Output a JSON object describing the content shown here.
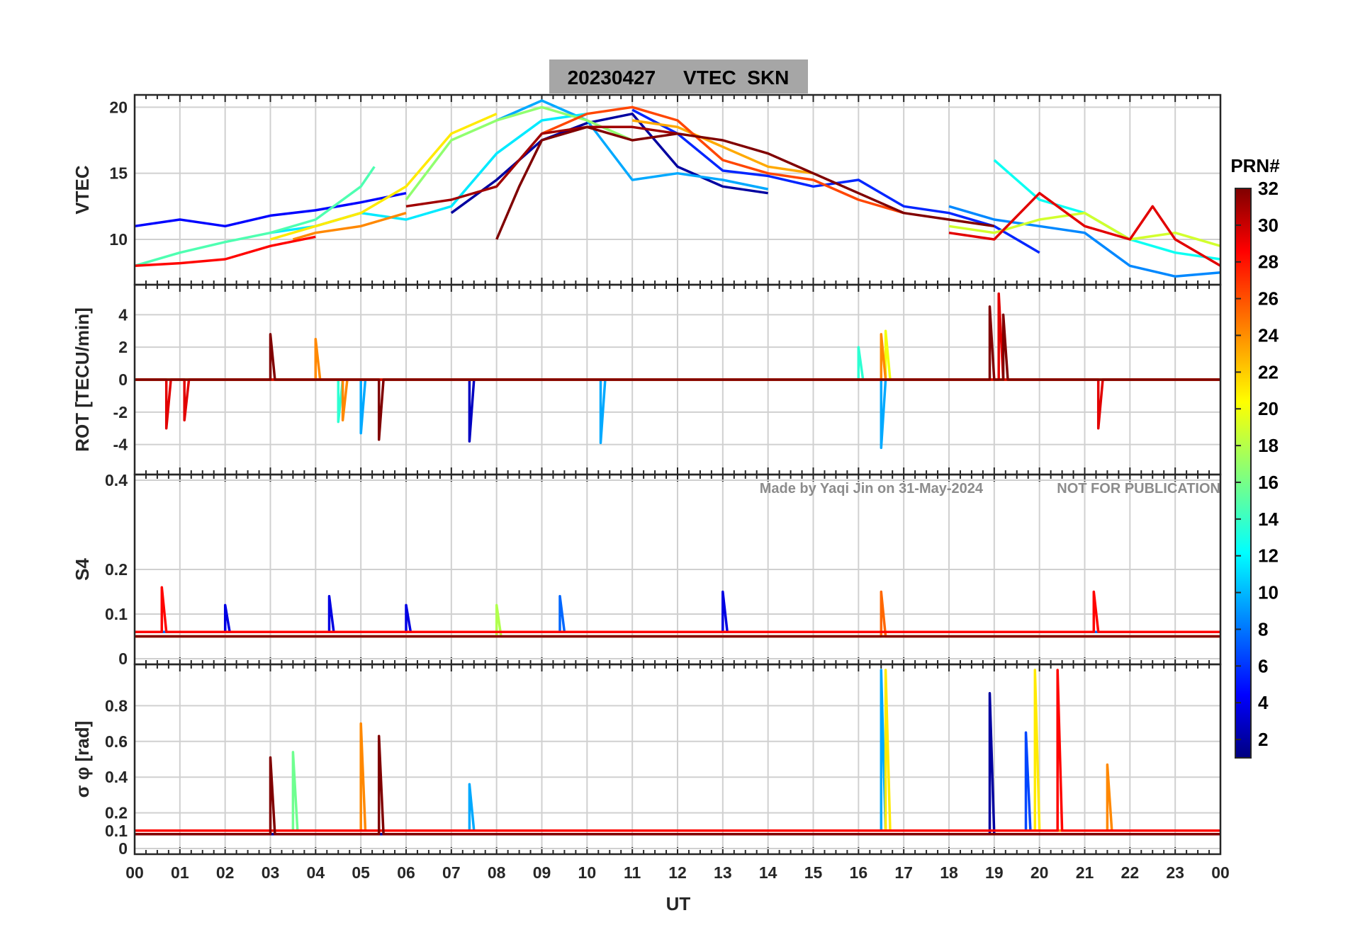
{
  "colors": {
    "title_box": "#a6a6a6",
    "grid": "#d0d0d0",
    "axis": "#262626",
    "watermark": "#8c8c8c"
  },
  "chart_data": {
    "type": "line",
    "title": "20230427     VTEC  SKN",
    "xlabel": "UT",
    "x_range": [
      0,
      24
    ],
    "x_tick_labels": [
      "00",
      "01",
      "02",
      "03",
      "04",
      "05",
      "06",
      "07",
      "08",
      "09",
      "10",
      "11",
      "12",
      "13",
      "14",
      "15",
      "16",
      "17",
      "18",
      "19",
      "20",
      "21",
      "22",
      "23",
      "00"
    ],
    "watermark_left": "Made by Yaqi Jin on 31-May-2024",
    "watermark_right": "NOT FOR PUBLICATION",
    "colorbar": {
      "title": "PRN#",
      "range": [
        1,
        32
      ],
      "tick_labels": [
        "2",
        "4",
        "6",
        "8",
        "10",
        "12",
        "14",
        "16",
        "18",
        "20",
        "22",
        "24",
        "26",
        "28",
        "30",
        "32"
      ],
      "colormap": "jet"
    },
    "panels": [
      {
        "ylabel": "VTEC",
        "ylim": [
          7,
          20.5
        ],
        "yticks": [
          10,
          15,
          20
        ],
        "ytick_labels": [
          "10",
          "15",
          "20"
        ],
        "series": [
          {
            "name": "PRN 2",
            "prn": 2,
            "x": [
              7.0,
              8.0,
              9.0,
              10.0,
              11.0,
              12.0,
              13.0,
              14.0
            ],
            "y": [
              12.0,
              14.5,
              17.5,
              18.8,
              19.5,
              15.5,
              14.0,
              13.5
            ]
          },
          {
            "name": "PRN 5",
            "prn": 5,
            "x": [
              0.0,
              1.0,
              2.0,
              3.0,
              4.0,
              5.0,
              6.0
            ],
            "y": [
              11.0,
              11.5,
              11.0,
              11.8,
              12.2,
              12.8,
              13.5
            ]
          },
          {
            "name": "PRN 6",
            "prn": 6,
            "x": [
              11.0,
              12.0,
              13.0,
              14.0,
              15.0,
              16.0,
              17.0,
              18.0,
              19.0,
              20.0
            ],
            "y": [
              19.8,
              18.0,
              15.2,
              14.8,
              14.0,
              14.5,
              12.5,
              12.0,
              11.0,
              9.0
            ]
          },
          {
            "name": "PRN 9",
            "prn": 9,
            "x": [
              18.0,
              19.0,
              20.0,
              21.0,
              22.0,
              23.0,
              24.0
            ],
            "y": [
              12.5,
              11.5,
              11.0,
              10.5,
              8.0,
              7.2,
              7.5
            ]
          },
          {
            "name": "PRN 10",
            "prn": 10,
            "x": [
              8.0,
              9.0,
              10.0,
              11.0,
              12.0,
              13.0,
              14.0
            ],
            "y": [
              19.0,
              20.5,
              19.0,
              14.5,
              15.0,
              14.5,
              13.8
            ]
          },
          {
            "name": "PRN 12",
            "prn": 12,
            "x": [
              3.0,
              4.0,
              5.0,
              6.0,
              7.0,
              8.0,
              9.0,
              10.0
            ],
            "y": [
              10.5,
              11.0,
              12.0,
              11.5,
              12.5,
              16.5,
              19.0,
              19.5
            ]
          },
          {
            "name": "PRN 13",
            "prn": 13,
            "x": [
              19.0,
              20.0,
              21.0,
              22.0,
              23.0,
              24.0
            ],
            "y": [
              16.0,
              13.0,
              12.0,
              10.0,
              9.0,
              8.5
            ]
          },
          {
            "name": "PRN 15",
            "prn": 15,
            "x": [
              0.0,
              1.0,
              2.0,
              3.0,
              4.0,
              5.0,
              5.3
            ],
            "y": [
              8.0,
              9.0,
              9.8,
              10.5,
              11.5,
              14.0,
              15.5
            ]
          },
          {
            "name": "PRN 17",
            "prn": 17,
            "x": [
              6.0,
              7.0,
              8.0,
              9.0,
              10.0,
              11.0
            ],
            "y": [
              13.0,
              17.5,
              19.0,
              20.0,
              19.0,
              17.5
            ]
          },
          {
            "name": "PRN 19",
            "prn": 19,
            "x": [
              18.0,
              19.0,
              20.0,
              21.0,
              22.0,
              23.0,
              24.0
            ],
            "y": [
              11.0,
              10.5,
              11.5,
              12.0,
              10.0,
              10.5,
              9.5
            ]
          },
          {
            "name": "PRN 21",
            "prn": 21,
            "x": [
              3.0,
              4.0,
              5.0,
              6.0,
              7.0,
              8.0
            ],
            "y": [
              10.0,
              11.0,
              12.0,
              14.0,
              18.0,
              19.5
            ]
          },
          {
            "name": "PRN 23",
            "prn": 23,
            "x": [
              11.0,
              12.0,
              13.0,
              14.0,
              15.0
            ],
            "y": [
              19.0,
              18.5,
              17.0,
              15.5,
              15.0
            ]
          },
          {
            "name": "PRN 24",
            "prn": 24,
            "x": [
              3.5,
              4.0,
              5.0,
              5.5,
              6.0
            ],
            "y": [
              10.0,
              10.5,
              11.0,
              11.5,
              12.0
            ]
          },
          {
            "name": "PRN 26",
            "prn": 26,
            "x": [
              9.0,
              10.0,
              11.0,
              12.0,
              13.0,
              14.0,
              15.0,
              16.0,
              17.0
            ],
            "y": [
              18.0,
              19.5,
              20.0,
              19.0,
              16.0,
              15.0,
              14.5,
              13.0,
              12.0
            ]
          },
          {
            "name": "PRN 28",
            "prn": 28,
            "x": [
              0.0,
              1.0,
              2.0,
              3.0,
              4.0
            ],
            "y": [
              8.0,
              8.2,
              8.5,
              9.5,
              10.2
            ]
          },
          {
            "name": "PRN 29",
            "prn": 29,
            "x": [
              18.0,
              19.0,
              20.0,
              21.0,
              22.0,
              22.5,
              23.0,
              24.0
            ],
            "y": [
              10.5,
              10.0,
              13.5,
              11.0,
              10.0,
              12.5,
              10.0,
              8.0
            ]
          },
          {
            "name": "PRN 31",
            "prn": 31,
            "x": [
              6.0,
              7.0,
              8.0,
              9.0,
              10.0,
              11.0,
              12.0
            ],
            "y": [
              12.5,
              13.0,
              14.0,
              18.0,
              18.5,
              18.5,
              18.0
            ]
          },
          {
            "name": "PRN 32",
            "prn": 32,
            "x": [
              8.0,
              8.5,
              9.0,
              10.0,
              11.0,
              12.0,
              13.0,
              14.0,
              15.0,
              16.0,
              17.0,
              18.0,
              19.0
            ],
            "y": [
              10.0,
              14.0,
              17.5,
              18.5,
              17.5,
              18.0,
              17.5,
              16.5,
              15.0,
              13.5,
              12.0,
              11.5,
              11.0
            ]
          }
        ]
      },
      {
        "ylabel": "ROT [TECU/min]",
        "ylim": [
          -5.5,
          5.5
        ],
        "yticks": [
          -4,
          -2,
          0,
          2,
          4
        ],
        "ytick_labels": [
          "-4",
          "-2",
          "0",
          "2",
          "4"
        ],
        "series": [
          {
            "name": "PRN 3",
            "prn": 3,
            "x": [
              0.0,
              7.0,
              7.4,
              7.4,
              7.5,
              12.0,
              19.0,
              24.0
            ],
            "y": [
              0.0,
              0.0,
              0.0,
              -3.8,
              0.0,
              0.0,
              0.0,
              0.0
            ]
          },
          {
            "name": "PRN 10",
            "prn": 10,
            "x": [
              0.0,
              5.0,
              5.0,
              5.1,
              10.3,
              10.3,
              10.4,
              16.5,
              16.5,
              16.6,
              24.0
            ],
            "y": [
              0.0,
              0.0,
              -3.3,
              0.0,
              0.0,
              -3.9,
              0.0,
              0.0,
              -4.2,
              0.0,
              0.0
            ]
          },
          {
            "name": "PRN 14",
            "prn": 14,
            "x": [
              0.0,
              4.5,
              4.5,
              4.6,
              16.0,
              16.0,
              16.1,
              24.0
            ],
            "y": [
              0.0,
              0.0,
              -2.6,
              0.0,
              0.0,
              2.0,
              0.0,
              0.0
            ]
          },
          {
            "name": "PRN 20",
            "prn": 20,
            "x": [
              0.0,
              16.6,
              16.6,
              16.7,
              24.0
            ],
            "y": [
              0.0,
              0.0,
              3.0,
              0.0,
              0.0
            ]
          },
          {
            "name": "PRN 24",
            "prn": 24,
            "x": [
              0.0,
              4.0,
              4.0,
              4.1,
              4.6,
              4.6,
              4.7,
              16.5,
              16.5,
              16.6,
              24.0
            ],
            "y": [
              0.0,
              0.0,
              2.5,
              0.0,
              0.0,
              -2.5,
              0.0,
              0.0,
              2.8,
              0.0,
              0.0
            ]
          },
          {
            "name": "PRN 29",
            "prn": 29,
            "x": [
              0.0,
              0.7,
              0.7,
              0.8,
              1.1,
              1.1,
              1.2,
              19.1,
              19.1,
              19.2,
              21.3,
              21.3,
              21.4,
              24.0
            ],
            "y": [
              0.0,
              0.0,
              -3.0,
              0.0,
              0.0,
              -2.5,
              0.0,
              0.0,
              5.3,
              0.0,
              0.0,
              -3.0,
              0.0,
              0.0
            ]
          },
          {
            "name": "PRN 32",
            "prn": 32,
            "x": [
              0.0,
              3.0,
              3.0,
              3.1,
              5.4,
              5.4,
              5.5,
              18.9,
              18.9,
              19.0,
              19.2,
              19.2,
              19.3,
              24.0
            ],
            "y": [
              0.0,
              0.0,
              2.8,
              0.0,
              0.0,
              -3.7,
              0.0,
              0.0,
              4.5,
              0.0,
              0.0,
              4.0,
              0.0,
              0.0
            ]
          }
        ]
      },
      {
        "ylabel": "S4",
        "ylim": [
          0,
          0.4
        ],
        "yticks": [
          0,
          0.1,
          0.2,
          0.4
        ],
        "ytick_labels": [
          "0",
          "0.1",
          "0.2",
          "0.4"
        ],
        "series": [
          {
            "name": "PRN 4",
            "prn": 4,
            "x": [
              0.0,
              2.0,
              2.0,
              2.1,
              4.3,
              4.3,
              4.4,
              6.0,
              6.0,
              6.1,
              13.0,
              13.0,
              13.1,
              24.0
            ],
            "y": [
              0.06,
              0.06,
              0.12,
              0.06,
              0.06,
              0.14,
              0.06,
              0.06,
              0.12,
              0.06,
              0.06,
              0.15,
              0.06,
              0.06
            ]
          },
          {
            "name": "PRN 8",
            "prn": 8,
            "x": [
              0.0,
              9.4,
              9.4,
              9.5,
              24.0
            ],
            "y": [
              0.06,
              0.06,
              0.14,
              0.06,
              0.06
            ]
          },
          {
            "name": "PRN 18",
            "prn": 18,
            "x": [
              0.0,
              8.0,
              8.0,
              8.1,
              24.0
            ],
            "y": [
              0.05,
              0.05,
              0.12,
              0.05,
              0.05
            ]
          },
          {
            "name": "PRN 25",
            "prn": 25,
            "x": [
              0.0,
              16.5,
              16.5,
              16.6,
              24.0
            ],
            "y": [
              0.05,
              0.05,
              0.15,
              0.05,
              0.05
            ]
          },
          {
            "name": "PRN 28",
            "prn": 28,
            "x": [
              0.0,
              0.6,
              0.6,
              0.7,
              21.2,
              21.2,
              21.3,
              24.0
            ],
            "y": [
              0.06,
              0.06,
              0.16,
              0.06,
              0.06,
              0.15,
              0.06,
              0.06
            ]
          },
          {
            "name": "PRN 32",
            "prn": 32,
            "x": [
              0.0,
              24.0
            ],
            "y": [
              0.05,
              0.05
            ]
          }
        ]
      },
      {
        "ylabel": "σ φ [rad]",
        "ylim": [
          0,
          1.0
        ],
        "yticks": [
          0,
          0.1,
          0.2,
          0.4,
          0.6,
          0.8
        ],
        "ytick_labels": [
          "0",
          "0.1",
          "0.2",
          "0.4",
          "0.6",
          "0.8"
        ],
        "series": [
          {
            "name": "PRN 2",
            "prn": 2,
            "x": [
              0.0,
              18.9,
              18.9,
              19.0,
              24.0
            ],
            "y": [
              0.08,
              0.08,
              0.87,
              0.08,
              0.08
            ]
          },
          {
            "name": "PRN 7",
            "prn": 7,
            "x": [
              0.0,
              19.7,
              19.7,
              19.8,
              24.0
            ],
            "y": [
              0.1,
              0.1,
              0.65,
              0.1,
              0.1
            ]
          },
          {
            "name": "PRN 10",
            "prn": 10,
            "x": [
              0.0,
              7.4,
              7.4,
              7.5,
              16.5,
              16.5,
              16.6,
              24.0
            ],
            "y": [
              0.1,
              0.1,
              0.36,
              0.1,
              0.1,
              1.0,
              0.1,
              0.1
            ]
          },
          {
            "name": "PRN 16",
            "prn": 16,
            "x": [
              0.0,
              3.5,
              3.5,
              3.6,
              24.0
            ],
            "y": [
              0.1,
              0.1,
              0.54,
              0.1,
              0.1
            ]
          },
          {
            "name": "PRN 21",
            "prn": 21,
            "x": [
              0.0,
              16.6,
              16.6,
              16.7,
              19.9,
              19.9,
              20.0,
              24.0
            ],
            "y": [
              0.1,
              0.1,
              1.0,
              0.1,
              0.1,
              1.0,
              0.1,
              0.1
            ]
          },
          {
            "name": "PRN 24",
            "prn": 24,
            "x": [
              0.0,
              5.0,
              5.0,
              5.1,
              21.5,
              21.5,
              21.6,
              24.0
            ],
            "y": [
              0.1,
              0.1,
              0.7,
              0.1,
              0.1,
              0.47,
              0.1,
              0.1
            ]
          },
          {
            "name": "PRN 28",
            "prn": 28,
            "x": [
              0.0,
              20.4,
              20.4,
              20.5,
              24.0
            ],
            "y": [
              0.1,
              0.1,
              1.0,
              0.1,
              0.1
            ]
          },
          {
            "name": "PRN 32",
            "prn": 32,
            "x": [
              0.0,
              3.0,
              3.0,
              3.1,
              5.4,
              5.4,
              5.5,
              24.0
            ],
            "y": [
              0.08,
              0.08,
              0.51,
              0.08,
              0.08,
              0.63,
              0.08,
              0.08
            ]
          }
        ]
      }
    ]
  }
}
